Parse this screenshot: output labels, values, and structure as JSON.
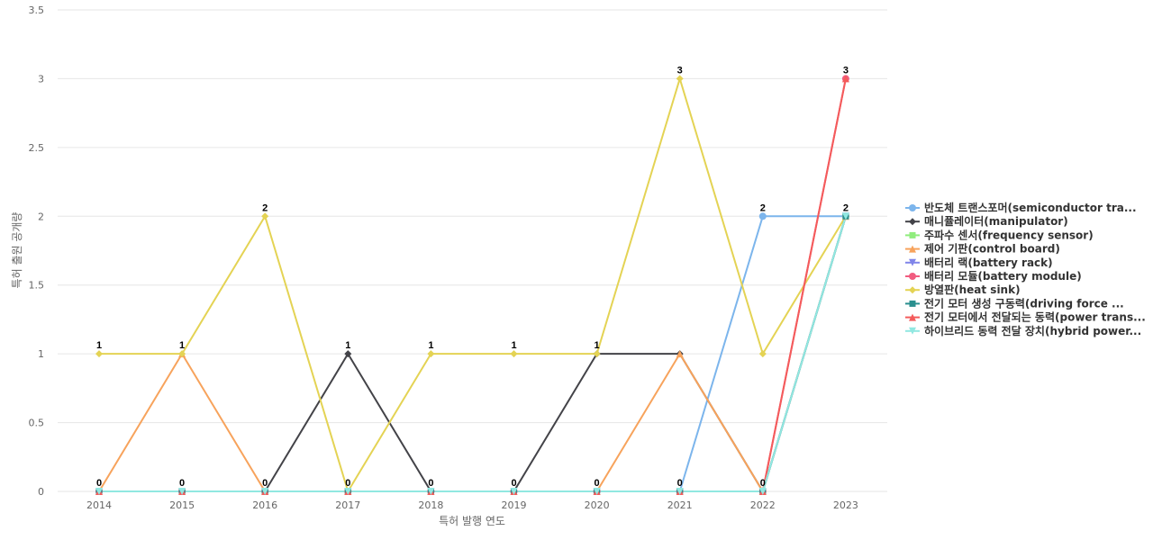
{
  "chart_data": {
    "type": "line",
    "title": "",
    "xlabel": "특허 발행 연도",
    "ylabel": "특허 출원 공개량",
    "categories": [
      "2014",
      "2015",
      "2016",
      "2017",
      "2018",
      "2019",
      "2020",
      "2021",
      "2022",
      "2023"
    ],
    "ylim": [
      0,
      3.5
    ],
    "yticks": [
      "0",
      "0.5",
      "1",
      "1.5",
      "2",
      "2.5",
      "3",
      "3.5"
    ],
    "grid": true,
    "legend_position": "right",
    "data_labels": [
      "1",
      "1",
      "2",
      "1",
      "1",
      "1",
      "1",
      "3",
      "2",
      "3"
    ],
    "zero_labels": [
      "0",
      "0",
      "0",
      "0",
      "0",
      "0",
      "0",
      "0",
      "0",
      "2"
    ],
    "series": [
      {
        "name": "반도체 트랜스포머(semiconductor tra...",
        "color": "#7cb5ec",
        "marker": "circle",
        "values": [
          0,
          0,
          0,
          0,
          0,
          0,
          0,
          0,
          2,
          2
        ]
      },
      {
        "name": "매니퓰레이터(manipulator)",
        "color": "#434348",
        "marker": "diamond",
        "values": [
          0,
          0,
          0,
          1,
          0,
          0,
          1,
          1,
          0,
          2
        ]
      },
      {
        "name": "주파수 센서(frequency sensor)",
        "color": "#90ed7d",
        "marker": "square",
        "values": [
          0,
          0,
          0,
          0,
          0,
          0,
          0,
          0,
          0,
          2
        ]
      },
      {
        "name": "제어 기판(control board)",
        "color": "#f7a35c",
        "marker": "triangle",
        "values": [
          0,
          1,
          0,
          0,
          0,
          0,
          0,
          1,
          0,
          2
        ]
      },
      {
        "name": "배터리 랙(battery rack)",
        "color": "#8085e9",
        "marker": "triangle-down",
        "values": [
          0,
          0,
          0,
          0,
          0,
          0,
          0,
          0,
          0,
          2
        ]
      },
      {
        "name": "배터리 모듈(battery module)",
        "color": "#f15c80",
        "marker": "circle",
        "values": [
          0,
          0,
          0,
          0,
          0,
          0,
          0,
          0,
          0,
          3
        ]
      },
      {
        "name": "방열판(heat sink)",
        "color": "#e4d354",
        "marker": "diamond",
        "values": [
          1,
          1,
          2,
          0,
          1,
          1,
          1,
          3,
          1,
          2
        ]
      },
      {
        "name": "전기 모터 생성 구동력(driving force ...",
        "color": "#2b908f",
        "marker": "square",
        "values": [
          0,
          0,
          0,
          0,
          0,
          0,
          0,
          0,
          0,
          2
        ]
      },
      {
        "name": "전기 모터에서 전달되는 동력(power trans...",
        "color": "#f45b5b",
        "marker": "triangle",
        "values": [
          0,
          0,
          0,
          0,
          0,
          0,
          0,
          0,
          0,
          3
        ]
      },
      {
        "name": "하이브리드 동력 전달 장치(hybrid power...",
        "color": "#91e8e1",
        "marker": "triangle-down",
        "values": [
          0,
          0,
          0,
          0,
          0,
          0,
          0,
          0,
          0,
          2
        ]
      }
    ]
  }
}
